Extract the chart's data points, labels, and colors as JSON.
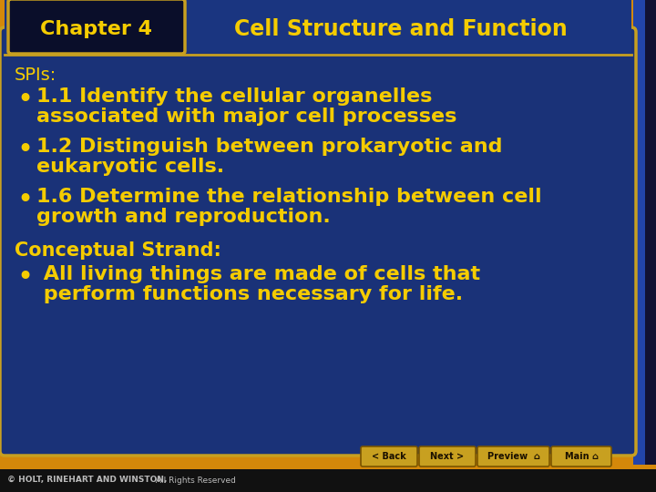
{
  "outer_bg_color": "#d4880a",
  "header_bg_color": "#1a3580",
  "header_box_color": "#0a0e2a",
  "header_box_border": "#c8a020",
  "header_chapter_text": "Chapter 4",
  "header_title_text": "Cell Structure and Function",
  "header_text_color": "#f5cc00",
  "main_box_color": "#1a3278",
  "main_box_border": "#c8a020",
  "text_color": "#f5cc00",
  "spis_label": "SPIs:",
  "bullet1_line1": "1.1 Identify the cellular organelles",
  "bullet1_line2": "associated with major cell processes",
  "bullet2_line1": "1.2 Distinguish between prokaryotic and",
  "bullet2_line2": "eukaryotic cells.",
  "bullet3_line1": "1.6 Determine the relationship between cell",
  "bullet3_line2": "growth and reproduction.",
  "conceptual_label": "Conceptual Strand:",
  "conceptual_line1": "•  All living things are made of cells that",
  "conceptual_line2": "  perform functions necessary for life.",
  "footer_bold": "© HOLT, RINEHART AND WINSTON,",
  "footer_normal": " All Rights Reserved",
  "nav_buttons": [
    "< Back",
    "Next >",
    "Preview  ⌂",
    "Main ⌂"
  ],
  "nav_button_color": "#c8a020",
  "nav_button_text_color": "#1a1000",
  "footer_bg": "#111111",
  "footer_text_color": "#bbbbbb",
  "right_stripe_color": "#1a3a8a",
  "right_dark_stripe": "#111133"
}
